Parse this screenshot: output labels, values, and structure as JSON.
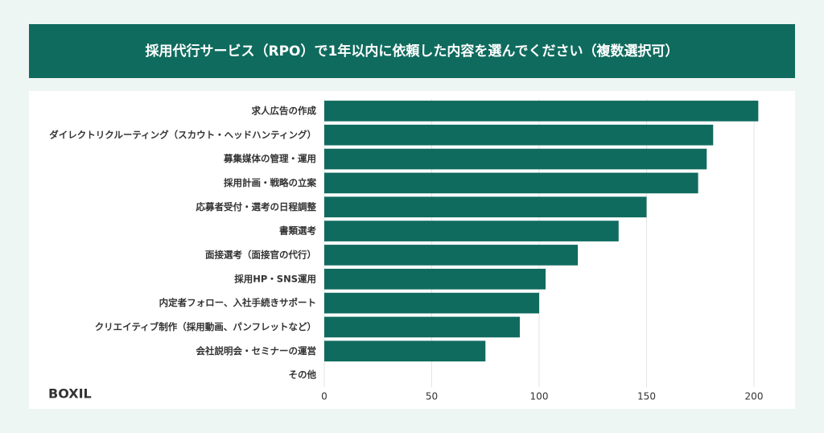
{
  "chart_data": {
    "type": "barh",
    "title": "採用代行サービス（RPO）で1年以内に依頼した内容を選んでください（複数選択可）",
    "categories": [
      "求人広告の作成",
      "ダイレクトリクルーティング（スカウト・ヘッドハンティング）",
      "募集媒体の管理・運用",
      "採用計画・戦略の立案",
      "応募者受付・選考の日程調整",
      "書類選考",
      "面接選考（面接官の代行）",
      "採用HP・SNS運用",
      "内定者フォロー、入社手続きサポート",
      "クリエイティブ制作（採用動画、パンフレットなど）",
      "会社説明会・セミナーの運営",
      "その他"
    ],
    "values": [
      202,
      181,
      178,
      174,
      150,
      137,
      118,
      103,
      100,
      91,
      75,
      0
    ],
    "color": "#0f6b5e",
    "xlim": [
      0,
      200
    ],
    "xticks": [
      0,
      50,
      100,
      150,
      200
    ],
    "grid": true
  },
  "logo": "BOXIL"
}
